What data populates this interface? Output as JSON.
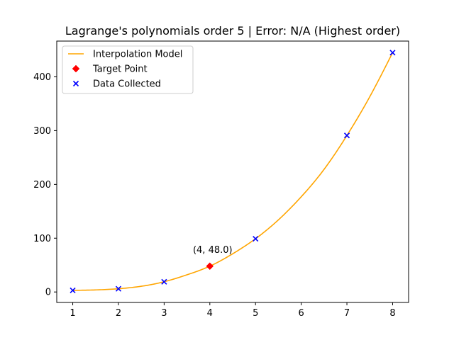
{
  "chart_data": {
    "type": "line",
    "title": "Lagrange's polynomials order 5 | Error: N/A (Highest order)",
    "xlabel": "",
    "ylabel": "",
    "xlim": [
      0.65,
      8.35
    ],
    "ylim": [
      -19.5,
      466.5
    ],
    "xticks": [
      1,
      2,
      3,
      4,
      5,
      6,
      7,
      8
    ],
    "yticks": [
      0,
      100,
      200,
      300,
      400
    ],
    "grid": false,
    "legend_position": "upper left",
    "series": [
      {
        "name": "Interpolation Model",
        "kind": "line",
        "color": "#ffa500",
        "x": [
          1,
          1.5,
          2,
          2.5,
          3,
          3.5,
          4,
          4.5,
          5,
          5.5,
          6,
          6.5,
          7,
          7.5,
          8
        ],
        "y": [
          3,
          3.8,
          6,
          10.6,
          19,
          31.9,
          48,
          71,
          99,
          134,
          177,
          228,
          291,
          363,
          445
        ]
      },
      {
        "name": "Target Point",
        "kind": "marker",
        "marker": "diamond",
        "color": "#ff0000",
        "x": [
          4
        ],
        "y": [
          48.0
        ]
      },
      {
        "name": "Data Collected",
        "kind": "marker",
        "marker": "x",
        "color": "#0000ff",
        "x": [
          1,
          2,
          3,
          5,
          7,
          8
        ],
        "y": [
          3,
          6,
          19,
          99,
          291,
          445
        ]
      }
    ],
    "annotations": [
      {
        "text": "(4, 48.0)",
        "x": 4,
        "y": 48.0
      }
    ]
  }
}
